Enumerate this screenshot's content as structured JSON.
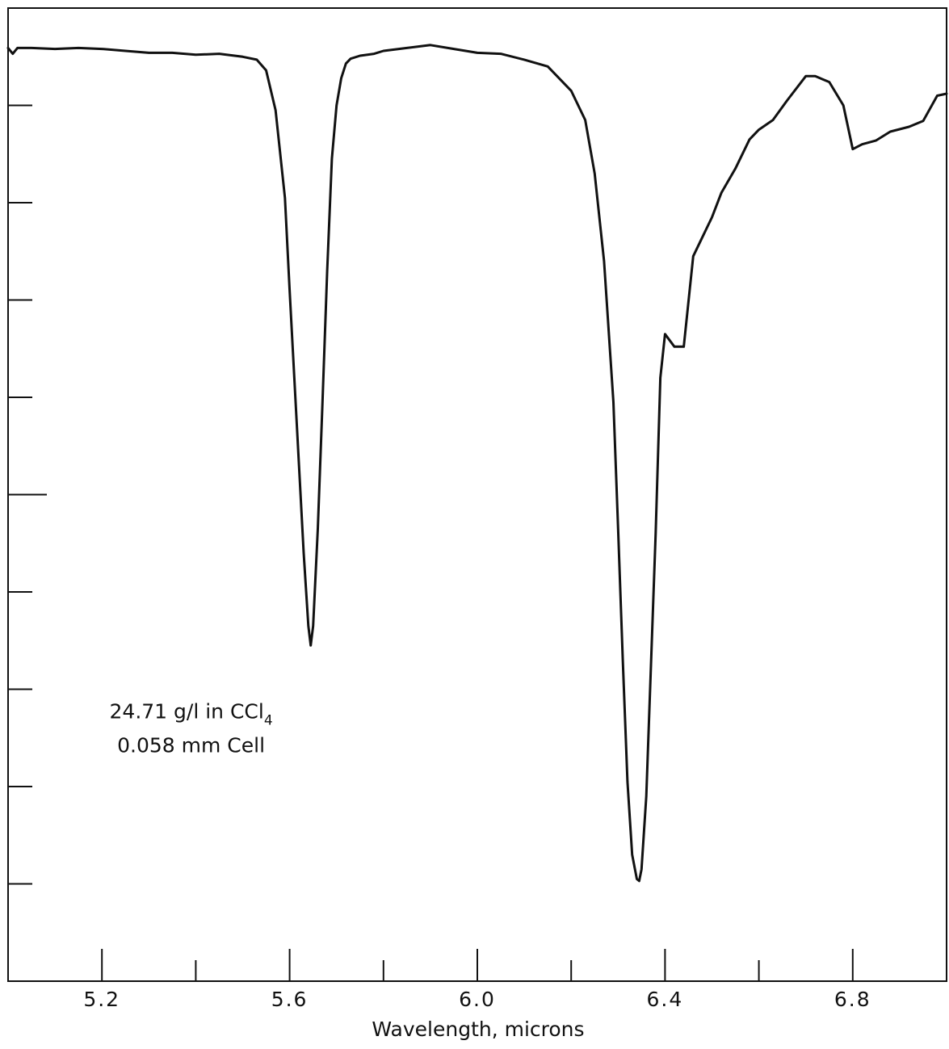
{
  "chart_data": {
    "type": "line",
    "title": "",
    "xlabel": "Wavelength, microns",
    "ylabel": "",
    "xlim": [
      5.0,
      7.0
    ],
    "ylim": [
      0,
      100
    ],
    "x_ticks": [
      5.2,
      5.6,
      6.0,
      6.4,
      6.8
    ],
    "x_tick_labels": [
      "5.2",
      "5.6",
      "6.0",
      "6.4",
      "6.8"
    ],
    "x_minor_ticks": [
      5.4,
      5.8,
      6.2,
      6.6
    ],
    "y_ticks": [
      90,
      80,
      70,
      60,
      50,
      40,
      30,
      20,
      10
    ],
    "annotation": {
      "line1_prefix": "24.71 g/l in CCl",
      "line1_subscript": "4",
      "line2": "0.058 mm Cell",
      "x": 5.39,
      "y": 27
    },
    "series": [
      {
        "x": [
          5.0,
          5.01,
          5.02,
          5.05,
          5.1,
          5.15,
          5.2,
          5.25,
          5.3,
          5.35,
          5.4,
          5.45,
          5.5,
          5.53,
          5.55,
          5.57,
          5.59,
          5.6,
          5.61,
          5.62,
          5.63,
          5.64,
          5.645,
          5.65,
          5.66,
          5.67,
          5.68,
          5.69,
          5.7,
          5.71,
          5.72,
          5.73,
          5.75,
          5.78,
          5.8,
          5.85,
          5.9,
          5.95,
          6.0,
          6.05,
          6.1,
          6.15,
          6.2,
          6.23,
          6.25,
          6.27,
          6.29,
          6.3,
          6.31,
          6.32,
          6.33,
          6.34,
          6.345,
          6.35,
          6.36,
          6.37,
          6.38,
          6.39,
          6.4,
          6.42,
          6.44,
          6.46,
          6.48,
          6.49,
          6.5,
          6.52,
          6.55,
          6.58,
          6.6,
          6.63,
          6.66,
          6.7,
          6.72,
          6.75,
          6.78,
          6.8,
          6.82,
          6.85,
          6.88,
          6.92,
          6.95,
          6.98,
          7.0
        ],
        "y": [
          95.9,
          95.3,
          95.9,
          95.9,
          95.8,
          95.9,
          95.8,
          95.6,
          95.4,
          95.4,
          95.2,
          95.3,
          95.0,
          94.7,
          93.6,
          89.5,
          80.5,
          71.0,
          62.0,
          53.0,
          44.0,
          36.5,
          34.5,
          36.5,
          46.5,
          59.5,
          73.0,
          84.5,
          90.0,
          92.8,
          94.3,
          94.8,
          95.1,
          95.3,
          95.6,
          95.9,
          96.2,
          95.8,
          95.4,
          95.3,
          94.7,
          94.0,
          91.5,
          88.5,
          83.0,
          74.0,
          59.5,
          46.5,
          33.0,
          20.5,
          13.0,
          10.5,
          10.3,
          11.5,
          19.0,
          32.5,
          46.0,
          62.0,
          66.5,
          65.2,
          65.2,
          74.5,
          76.5,
          77.5,
          78.5,
          81.0,
          83.5,
          86.5,
          87.5,
          88.5,
          90.5,
          93.0,
          93.0,
          92.4,
          90.0,
          85.5,
          86.0,
          86.4,
          87.3,
          87.8,
          88.4,
          91.0,
          91.2
        ]
      }
    ]
  }
}
